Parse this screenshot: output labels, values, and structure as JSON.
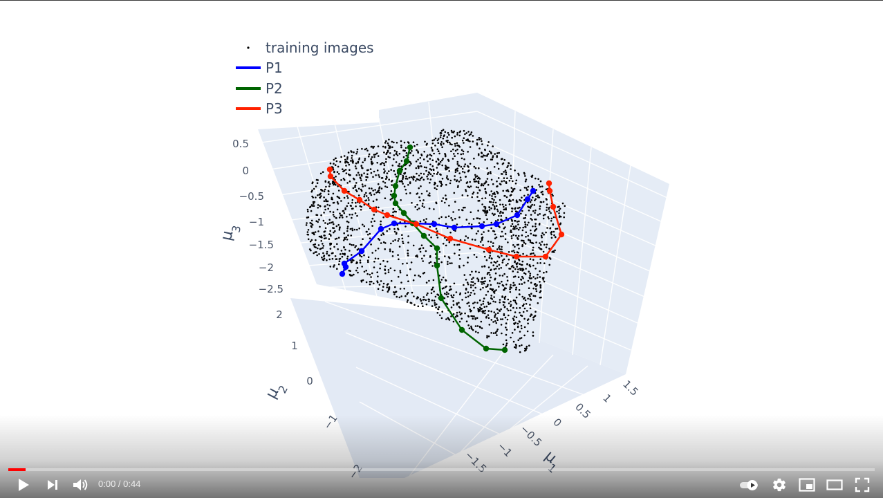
{
  "player": {
    "time_current": "0:00",
    "time_separator": " / ",
    "time_total": "0:44",
    "progress_fraction": 0.02,
    "accent_color": "#ff0000",
    "icons": {
      "play": "play-icon",
      "next": "next-icon",
      "volume": "volume-icon",
      "autoplay": "autoplay-toggle-icon",
      "settings": "gear-icon",
      "miniplayer": "miniplayer-icon",
      "theater": "theater-mode-icon",
      "fullscreen": "fullscreen-icon"
    }
  },
  "chart_data": {
    "type": "scatter",
    "projection": "3d",
    "legend": {
      "placement": "top-left",
      "entries": [
        {
          "label": "training images",
          "color": "#000000",
          "symbol": "dot"
        },
        {
          "label": "P1",
          "color": "#0000ff",
          "symbol": "line"
        },
        {
          "label": "P2",
          "color": "#006400",
          "symbol": "line"
        },
        {
          "label": "P3",
          "color": "#ff2200",
          "symbol": "line"
        }
      ]
    },
    "axes": {
      "z": {
        "title_main": "μ",
        "title_sub": "3",
        "ticks": [
          "0.5",
          "0",
          "−0.5",
          "−1",
          "−1.5",
          "−2",
          "−2.5"
        ]
      },
      "y": {
        "title_main": "μ",
        "title_sub": "2",
        "ticks": [
          "2",
          "1",
          "0",
          "−1",
          "−2"
        ]
      },
      "x": {
        "title_main": "μ",
        "title_sub": "1",
        "ticks": [
          "−1.5",
          "−1",
          "−0.5",
          "0",
          "0.5",
          "1",
          "1.5"
        ]
      }
    },
    "grid": true,
    "background_color": "#e5ecf6",
    "series": [
      {
        "name": "training images",
        "mode": "markers",
        "color": "#000000"
      },
      {
        "name": "P1",
        "mode": "lines+markers",
        "color": "#0000ff"
      },
      {
        "name": "P2",
        "mode": "lines+markers",
        "color": "#006400"
      },
      {
        "name": "P3",
        "mode": "lines+markers",
        "color": "#ff2200"
      }
    ]
  }
}
